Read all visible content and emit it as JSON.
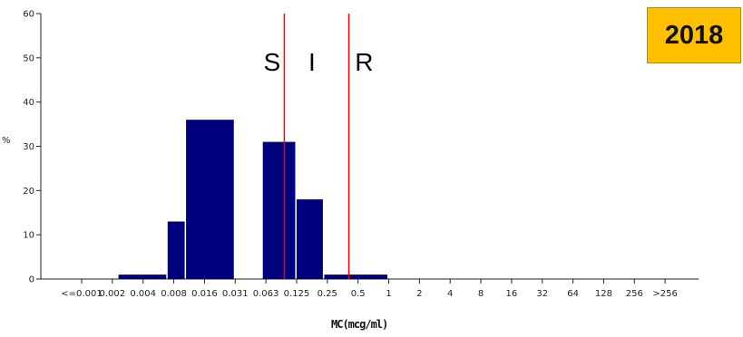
{
  "chart_data": {
    "type": "bar",
    "categories": [
      "<=0.001",
      "0.002",
      "0.004",
      "0.008",
      "0.016",
      "0.031",
      "0.063",
      "0.125",
      "0.25",
      "0.5",
      "1",
      "2",
      "4",
      "8",
      "16",
      "32",
      "64",
      "128",
      "256",
      ">256"
    ],
    "bins": [
      {
        "from": 1.2,
        "to": 2.8,
        "value": 1
      },
      {
        "from": 2.8,
        "to": 3.4,
        "value": 13
      },
      {
        "from": 3.4,
        "to": 5.0,
        "value": 36
      },
      {
        "from": 5.0,
        "to": 5.9,
        "value": 0
      },
      {
        "from": 5.9,
        "to": 7.0,
        "value": 31
      },
      {
        "from": 7.0,
        "to": 7.9,
        "value": 18
      },
      {
        "from": 7.9,
        "to": 10.0,
        "value": 1
      }
    ],
    "reference_lines": [
      {
        "x": 6.6,
        "color": "#ff0000"
      },
      {
        "x": 8.7,
        "color": "#ff0000"
      }
    ],
    "zones": [
      {
        "label": "S",
        "x": 6.2
      },
      {
        "label": "I",
        "x": 7.5
      },
      {
        "label": "R",
        "x": 9.2
      }
    ],
    "yticks": [
      0,
      10,
      20,
      30,
      40,
      50,
      60
    ],
    "ylim": [
      0,
      60
    ],
    "xlabel": "MC(mcg/ml)",
    "ylabel": "%",
    "bar_color": "#00007f",
    "grid": false
  },
  "badge": {
    "text": "2018",
    "color": "#ffc000"
  }
}
